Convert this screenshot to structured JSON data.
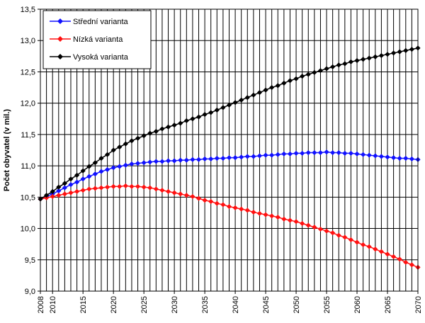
{
  "chart_data": {
    "type": "line",
    "title": "",
    "xlabel": "",
    "ylabel": "Počet obyvatel (v mil.)",
    "xlim": [
      2008,
      2070
    ],
    "ylim": [
      9.0,
      13.5
    ],
    "yticks": [
      "9,0",
      "9,5",
      "10,0",
      "10,5",
      "11,0",
      "11,5",
      "12,0",
      "12,5",
      "13,0",
      "13,5"
    ],
    "xticks": [
      "2008",
      "2010",
      "2015",
      "2020",
      "2025",
      "2030",
      "2035",
      "2040",
      "2045",
      "2050",
      "2055",
      "2060",
      "2065",
      "2070"
    ],
    "grid": true,
    "legend_position": "top-left",
    "x": [
      2008,
      2009,
      2010,
      2011,
      2012,
      2013,
      2014,
      2015,
      2016,
      2017,
      2018,
      2019,
      2020,
      2021,
      2022,
      2023,
      2024,
      2025,
      2026,
      2027,
      2028,
      2029,
      2030,
      2031,
      2032,
      2033,
      2034,
      2035,
      2036,
      2037,
      2038,
      2039,
      2040,
      2041,
      2042,
      2043,
      2044,
      2045,
      2046,
      2047,
      2048,
      2049,
      2050,
      2051,
      2052,
      2053,
      2054,
      2055,
      2056,
      2057,
      2058,
      2059,
      2060,
      2061,
      2062,
      2063,
      2064,
      2065,
      2066,
      2067,
      2068,
      2069,
      2070
    ],
    "series": [
      {
        "name": "Střední varianta",
        "color": "#1010ff",
        "values": [
          10.47,
          10.51,
          10.55,
          10.6,
          10.65,
          10.7,
          10.74,
          10.79,
          10.83,
          10.87,
          10.91,
          10.94,
          10.97,
          10.99,
          11.01,
          11.03,
          11.04,
          11.05,
          11.06,
          11.07,
          11.07,
          11.08,
          11.08,
          11.09,
          11.09,
          11.1,
          11.1,
          11.11,
          11.11,
          11.12,
          11.12,
          11.13,
          11.13,
          11.14,
          11.15,
          11.15,
          11.16,
          11.17,
          11.17,
          11.18,
          11.19,
          11.19,
          11.2,
          11.2,
          11.21,
          11.21,
          11.21,
          11.22,
          11.21,
          11.21,
          11.2,
          11.2,
          11.19,
          11.18,
          11.17,
          11.16,
          11.15,
          11.14,
          11.13,
          11.12,
          11.12,
          11.11,
          11.1
        ]
      },
      {
        "name": "Nízká varianta",
        "color": "#ff1010",
        "values": [
          10.47,
          10.49,
          10.51,
          10.53,
          10.55,
          10.57,
          10.59,
          10.61,
          10.63,
          10.64,
          10.65,
          10.66,
          10.67,
          10.67,
          10.68,
          10.67,
          10.67,
          10.66,
          10.65,
          10.63,
          10.61,
          10.59,
          10.57,
          10.55,
          10.53,
          10.51,
          10.48,
          10.45,
          10.43,
          10.4,
          10.38,
          10.35,
          10.33,
          10.31,
          10.29,
          10.26,
          10.24,
          10.22,
          10.2,
          10.18,
          10.15,
          10.13,
          10.11,
          10.08,
          10.05,
          10.02,
          9.99,
          9.96,
          9.93,
          9.89,
          9.86,
          9.82,
          9.78,
          9.74,
          9.71,
          9.67,
          9.63,
          9.59,
          9.55,
          9.51,
          9.46,
          9.42,
          9.38
        ]
      },
      {
        "name": "Vysoká varianta",
        "color": "#000000",
        "values": [
          10.47,
          10.53,
          10.59,
          10.66,
          10.72,
          10.79,
          10.85,
          10.92,
          10.99,
          11.05,
          11.12,
          11.18,
          11.25,
          11.3,
          11.35,
          11.4,
          11.44,
          11.48,
          11.52,
          11.55,
          11.59,
          11.62,
          11.65,
          11.68,
          11.72,
          11.75,
          11.78,
          11.82,
          11.85,
          11.89,
          11.93,
          11.97,
          12.01,
          12.05,
          12.09,
          12.13,
          12.17,
          12.21,
          12.25,
          12.28,
          12.32,
          12.36,
          12.39,
          12.43,
          12.46,
          12.49,
          12.52,
          12.55,
          12.58,
          12.61,
          12.63,
          12.66,
          12.68,
          12.7,
          12.72,
          12.74,
          12.76,
          12.78,
          12.8,
          12.82,
          12.84,
          12.86,
          12.88
        ]
      }
    ]
  }
}
